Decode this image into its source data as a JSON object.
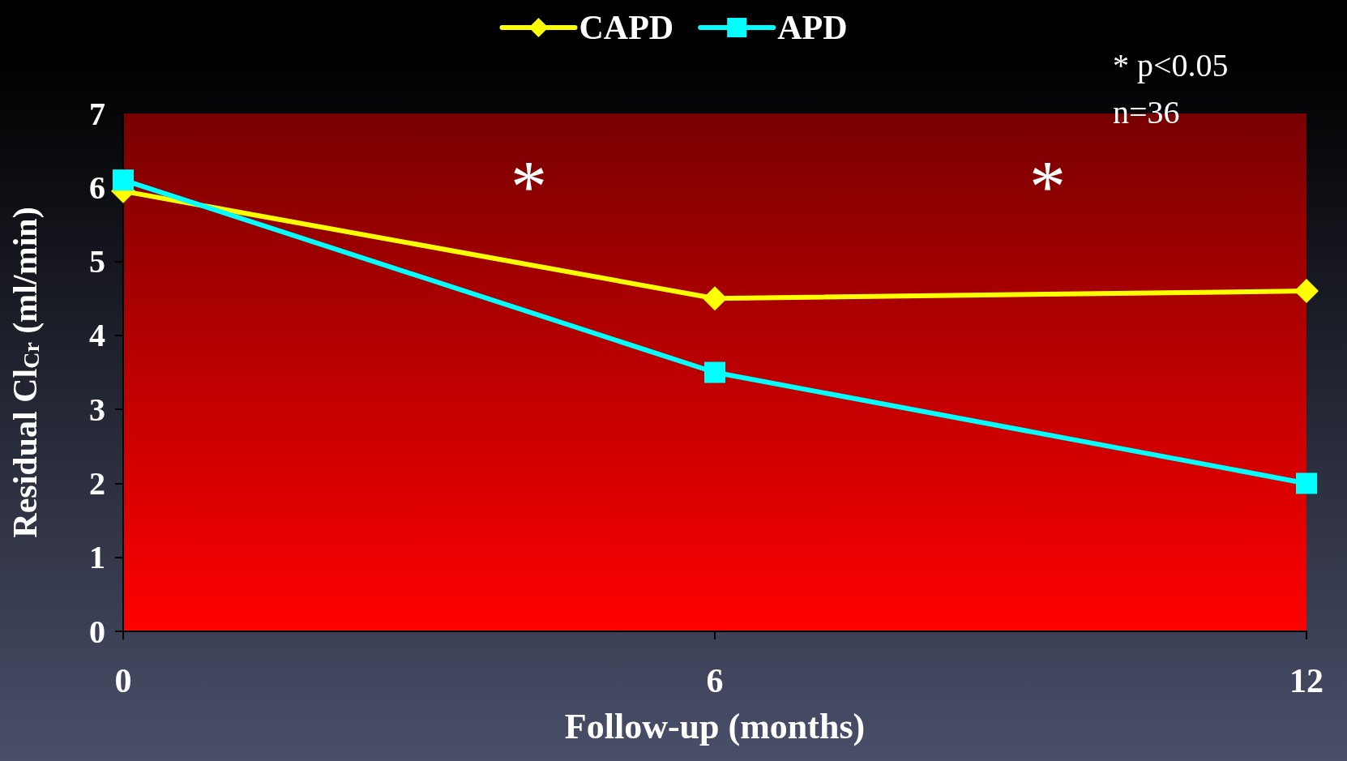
{
  "chart_data": {
    "type": "line",
    "xlabel": "Follow-up (months)",
    "ylabel": "Residual Cl$_{Cr}$ (ml/min)",
    "x": [
      0,
      6,
      12
    ],
    "series": [
      {
        "name": "CAPD",
        "color": "#ffff00",
        "marker": "diamond",
        "values": [
          5.95,
          4.5,
          4.6
        ]
      },
      {
        "name": "APD",
        "color": "#00ffff",
        "marker": "square",
        "values": [
          6.1,
          3.5,
          2.0
        ]
      }
    ],
    "xlim": [
      0,
      12
    ],
    "xticks": [
      0,
      6,
      12
    ],
    "ylim": [
      0,
      7
    ],
    "yticks": [
      0,
      1,
      2,
      3,
      4,
      5,
      6,
      7
    ],
    "grid": false,
    "legend": "top",
    "line_style": "solid",
    "annotations": [
      "*",
      "*",
      "* p<0.05",
      "n=36"
    ]
  }
}
